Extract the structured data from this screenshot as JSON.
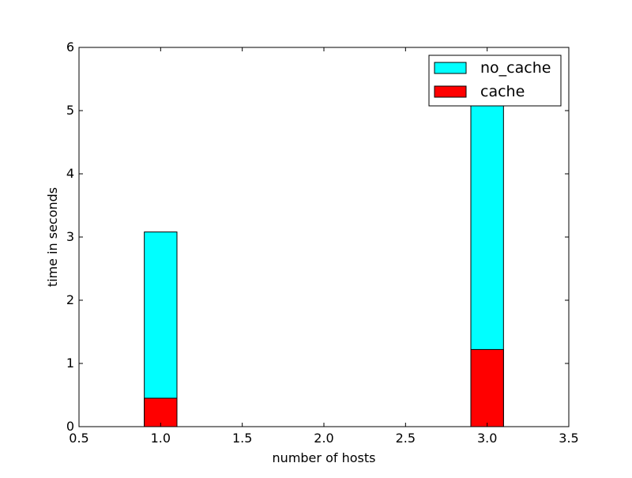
{
  "chart_data": {
    "type": "bar",
    "stacked": false,
    "overlapping": true,
    "title": "",
    "xlabel": "number of hosts",
    "ylabel": "time in seconds",
    "xlim": [
      0.5,
      3.5
    ],
    "ylim": [
      0,
      6
    ],
    "bar_width": 0.2,
    "x": [
      1.0,
      3.0
    ],
    "x_ticks": [
      "0.5",
      "1.0",
      "1.5",
      "2.0",
      "2.5",
      "3.0",
      "3.5"
    ],
    "y_ticks": [
      "0",
      "1",
      "2",
      "3",
      "4",
      "5",
      "6"
    ],
    "grid": false,
    "legend_position": "top-right",
    "series": [
      {
        "name": "no_cache",
        "color": "#00ffff",
        "values": [
          3.08,
          5.3
        ]
      },
      {
        "name": "cache",
        "color": "#ff0000",
        "values": [
          0.45,
          1.22
        ]
      }
    ]
  }
}
